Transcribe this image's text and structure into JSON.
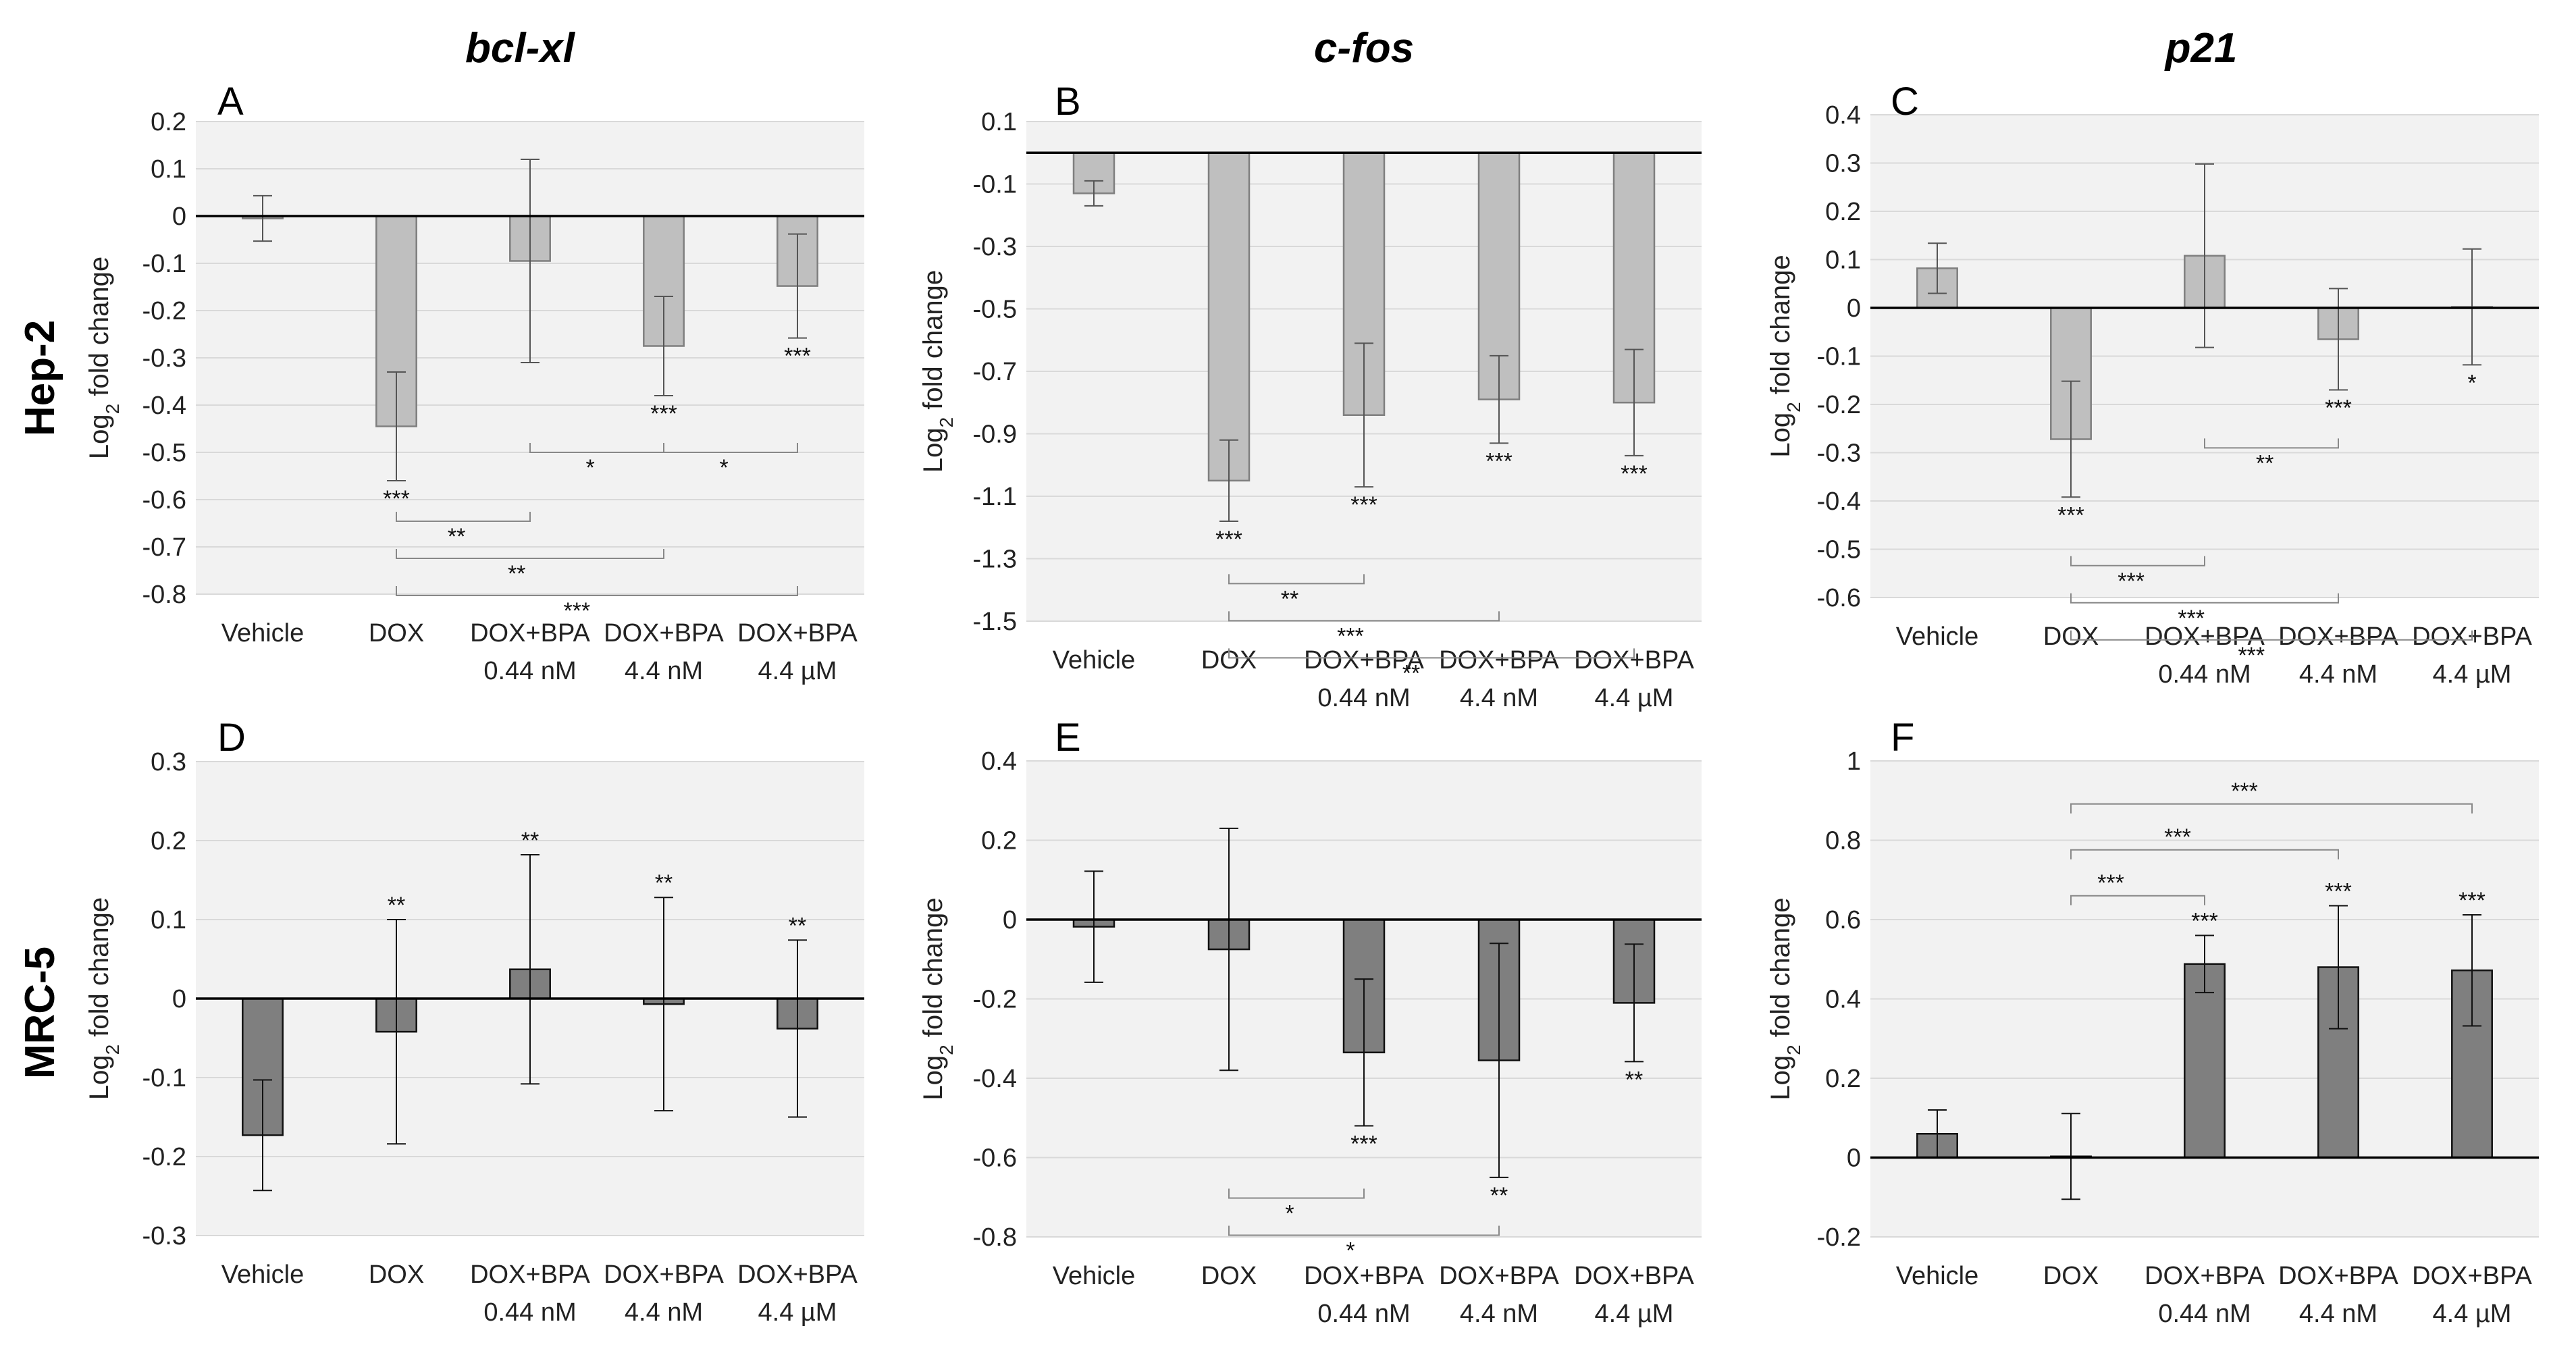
{
  "gene_titles": [
    "bcl-xl",
    "c-fos",
    "p21"
  ],
  "row_titles": [
    "Hep-2",
    "MRC-5"
  ],
  "ylabel_main": "Log",
  "ylabel_sub": "2",
  "ylabel_rest": " fold change",
  "colors": {
    "hep2_bar": "#bfbfbf",
    "mrc5_bar": "#7f7f7f",
    "plot_bg": "#f2f2f2",
    "grid": "#d9d9d9"
  },
  "chart_data": [
    {
      "panel": "A",
      "type": "bar",
      "gene": "bcl-xl",
      "cell_line": "Hep-2",
      "style": "light",
      "categories": [
        [
          "Vehicle"
        ],
        [
          "DOX"
        ],
        [
          "DOX+BPA",
          "0.44 nM"
        ],
        [
          "DOX+BPA",
          "4.4 nM"
        ],
        [
          "DOX+BPA",
          "4.4 µM"
        ]
      ],
      "values": [
        -0.005,
        -0.445,
        -0.095,
        -0.275,
        -0.148
      ],
      "errors": [
        0.048,
        0.115,
        0.215,
        0.105,
        0.11
      ],
      "ylim": [
        -0.8,
        0.2
      ],
      "yticks": [
        "0.2",
        "0.1",
        "0",
        "-0.1",
        "-0.2",
        "-0.3",
        "-0.4",
        "-0.5",
        "-0.6",
        "-0.7",
        "-0.8"
      ],
      "bar_marks": [
        null,
        "***",
        null,
        "***",
        "***"
      ],
      "brackets": [
        {
          "from": 1,
          "to": 2,
          "label": "**"
        },
        {
          "from": 1,
          "to": 3,
          "label": "**"
        },
        {
          "from": 1,
          "to": 4,
          "label": "***"
        },
        {
          "from": 2,
          "to": 3,
          "label": "*"
        },
        {
          "from": 3,
          "to": 4,
          "label": "*"
        }
      ]
    },
    {
      "panel": "B",
      "type": "bar",
      "gene": "c-fos",
      "cell_line": "Hep-2",
      "style": "light",
      "categories": [
        [
          "Vehicle"
        ],
        [
          "DOX"
        ],
        [
          "DOX+BPA",
          "0.44 nM"
        ],
        [
          "DOX+BPA",
          "4.4 nM"
        ],
        [
          "DOX+BPA",
          "4.4 µM"
        ]
      ],
      "values": [
        -0.13,
        -1.05,
        -0.84,
        -0.79,
        -0.8
      ],
      "errors": [
        0.04,
        0.13,
        0.23,
        0.14,
        0.17
      ],
      "ylim": [
        -1.5,
        0.1
      ],
      "yticks": [
        "0.1",
        "-0.1",
        "-0.3",
        "-0.5",
        "-0.7",
        "-0.9",
        "-1.1",
        "-1.3",
        "-1.5"
      ],
      "bar_marks": [
        null,
        "***",
        "***",
        "***",
        "***"
      ],
      "brackets": [
        {
          "from": 1,
          "to": 2,
          "label": "**"
        },
        {
          "from": 1,
          "to": 3,
          "label": "***"
        },
        {
          "from": 1,
          "to": 4,
          "label": "**"
        }
      ]
    },
    {
      "panel": "C",
      "type": "bar",
      "gene": "p21",
      "cell_line": "Hep-2",
      "style": "light",
      "categories": [
        [
          "Vehicle"
        ],
        [
          "DOX"
        ],
        [
          "DOX+BPA",
          "0.44 nM"
        ],
        [
          "DOX+BPA",
          "4.4 nM"
        ],
        [
          "DOX+BPA",
          "4.4 µM"
        ]
      ],
      "values": [
        0.082,
        -0.272,
        0.108,
        -0.065,
        0.002
      ],
      "errors": [
        0.052,
        0.12,
        0.19,
        0.105,
        0.12
      ],
      "ylim": [
        -0.6,
        0.4
      ],
      "yticks": [
        "0.4",
        "0.3",
        "0.2",
        "0.1",
        "0",
        "-0.1",
        "-0.2",
        "-0.3",
        "-0.4",
        "-0.5",
        "-0.6"
      ],
      "bar_marks": [
        null,
        "***",
        null,
        "***",
        "*"
      ],
      "brackets": [
        {
          "from": 1,
          "to": 2,
          "label": "***"
        },
        {
          "from": 1,
          "to": 3,
          "label": "***"
        },
        {
          "from": 1,
          "to": 4,
          "label": "***"
        },
        {
          "from": 2,
          "to": 3,
          "label": "**"
        }
      ]
    },
    {
      "panel": "D",
      "type": "bar",
      "gene": "bcl-xl",
      "cell_line": "MRC-5",
      "style": "dark",
      "categories": [
        [
          "Vehicle"
        ],
        [
          "DOX"
        ],
        [
          "DOX+BPA",
          "0.44 nM"
        ],
        [
          "DOX+BPA",
          "4.4 nM"
        ],
        [
          "DOX+BPA",
          "4.4 µM"
        ]
      ],
      "values": [
        -0.173,
        -0.042,
        0.037,
        -0.007,
        -0.038
      ],
      "errors": [
        0.07,
        0.142,
        0.145,
        0.135,
        0.112
      ],
      "ylim": [
        -0.3,
        0.3
      ],
      "yticks": [
        "0.3",
        "0.2",
        "0.1",
        "0",
        "-0.1",
        "-0.2",
        "-0.3"
      ],
      "bar_marks": [
        null,
        "**",
        "**",
        "**",
        "**"
      ],
      "brackets": []
    },
    {
      "panel": "E",
      "type": "bar",
      "gene": "c-fos",
      "cell_line": "MRC-5",
      "style": "dark",
      "categories": [
        [
          "Vehicle"
        ],
        [
          "DOX"
        ],
        [
          "DOX+BPA",
          "0.44 nM"
        ],
        [
          "DOX+BPA",
          "4.4 nM"
        ],
        [
          "DOX+BPA",
          "4.4 µM"
        ]
      ],
      "values": [
        -0.018,
        -0.075,
        -0.335,
        -0.355,
        -0.21
      ],
      "errors": [
        0.14,
        0.305,
        0.185,
        0.295,
        0.148
      ],
      "ylim": [
        -0.8,
        0.4
      ],
      "yticks": [
        "0.4",
        "0.2",
        "0",
        "-0.2",
        "-0.4",
        "-0.6",
        "-0.8"
      ],
      "bar_marks": [
        null,
        null,
        "***",
        "**",
        "**"
      ],
      "brackets": [
        {
          "from": 1,
          "to": 2,
          "label": "*"
        },
        {
          "from": 1,
          "to": 3,
          "label": "*"
        }
      ]
    },
    {
      "panel": "F",
      "type": "bar",
      "gene": "p21",
      "cell_line": "MRC-5",
      "style": "dark",
      "categories": [
        [
          "Vehicle"
        ],
        [
          "DOX"
        ],
        [
          "DOX+BPA",
          "0.44 nM"
        ],
        [
          "DOX+BPA",
          "4.4 nM"
        ],
        [
          "DOX+BPA",
          "4.4 µM"
        ]
      ],
      "values": [
        0.06,
        0.003,
        0.488,
        0.48,
        0.472
      ],
      "errors": [
        0.06,
        0.108,
        0.072,
        0.155,
        0.14
      ],
      "ylim": [
        -0.2,
        1.0
      ],
      "yticks": [
        "1",
        "0.8",
        "0.6",
        "0.4",
        "0.2",
        "0",
        "-0.2"
      ],
      "bar_marks": [
        null,
        null,
        "***",
        "***",
        "***"
      ],
      "brackets": [
        {
          "from": 1,
          "to": 2,
          "label": "***"
        },
        {
          "from": 1,
          "to": 3,
          "label": "***"
        },
        {
          "from": 1,
          "to": 4,
          "label": "***"
        }
      ]
    }
  ]
}
